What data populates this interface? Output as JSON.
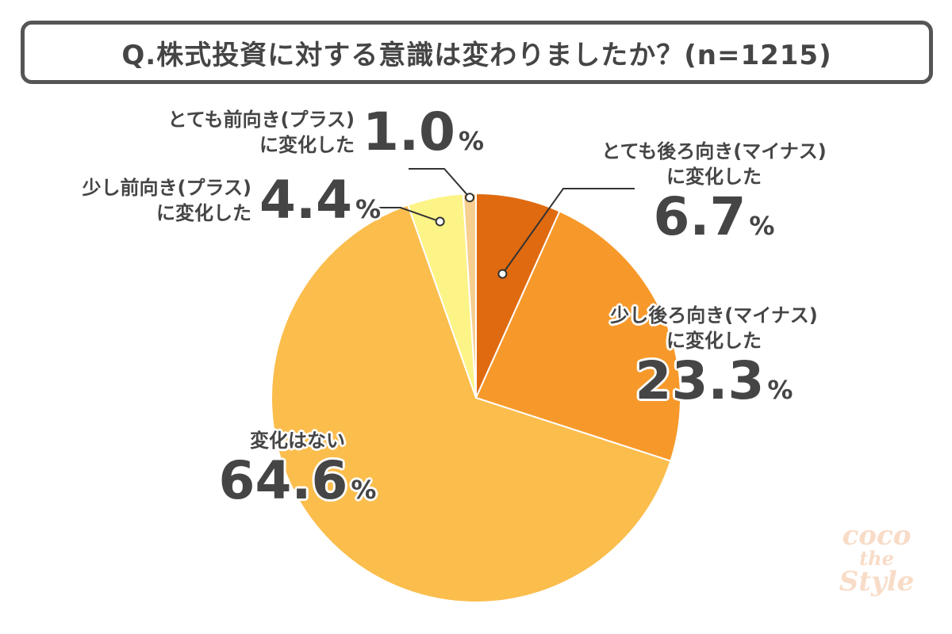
{
  "title": "Q.株式投資に対する意識は変わりましたか？(n=1215)",
  "chart_data": {
    "type": "pie",
    "title": "Q.株式投資に対する意識は変わりましたか？(n=1215)",
    "slices": [
      {
        "name_line1": "とても後ろ向き(マイナス)",
        "name_line2": "に変化した",
        "value": 6.7,
        "value_label": "6.7",
        "color": "#e06a10"
      },
      {
        "name_line1": "少し後ろ向き(マイナス)",
        "name_line2": "に変化した",
        "value": 23.3,
        "value_label": "23.3",
        "color": "#f7992a"
      },
      {
        "name_line1": "変化はない",
        "name_line2": "",
        "value": 64.6,
        "value_label": "64.6",
        "color": "#fbbd4c"
      },
      {
        "name_line1": "少し前向き(プラス)",
        "name_line2": "に変化した",
        "value": 4.4,
        "value_label": "4.4",
        "color": "#fdf487"
      },
      {
        "name_line1": "とても前向き(プラス)",
        "name_line2": "に変化した",
        "value": 1.0,
        "value_label": "1.0",
        "color": "#f7cf8e"
      }
    ],
    "unit": "%"
  },
  "watermark": {
    "line1": "coco",
    "line2": "the",
    "line3": "Style"
  }
}
